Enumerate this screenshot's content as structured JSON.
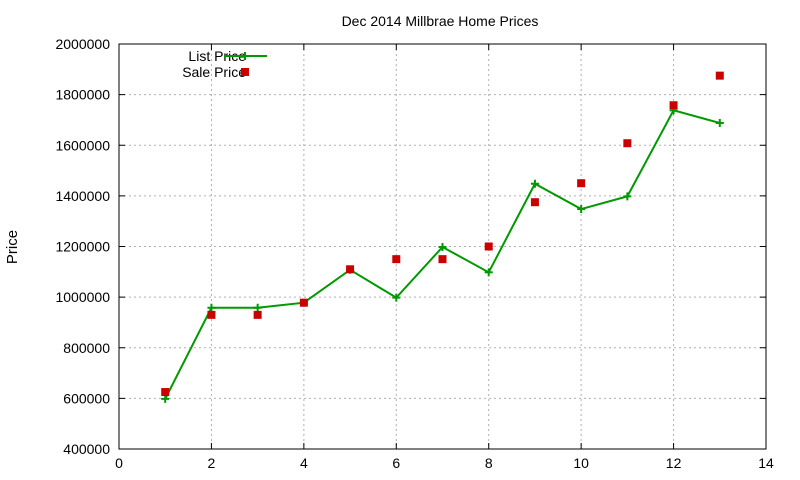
{
  "chart_data": {
    "type": "line",
    "title": "Dec 2014 Millbrae Home Prices",
    "xlabel": "",
    "ylabel": "Price",
    "xlim": [
      0,
      14
    ],
    "ylim": [
      400000,
      2000000
    ],
    "x_ticks": [
      "0",
      "2",
      "4",
      "6",
      "8",
      "10",
      "12",
      "14"
    ],
    "y_ticks": [
      "400000",
      "600000",
      "800000",
      "1000000",
      "1200000",
      "1400000",
      "1600000",
      "1800000",
      "2000000"
    ],
    "grid": true,
    "legend_position": "top-left",
    "series": [
      {
        "name": "List Price",
        "style": "line+cross",
        "color": "#009900",
        "points": [
          [
            1,
            598000
          ],
          [
            2,
            958000
          ],
          [
            3,
            958000
          ],
          [
            4,
            978000
          ],
          [
            5,
            1108000
          ],
          [
            6,
            998000
          ],
          [
            7,
            1198000
          ],
          [
            8,
            1098000
          ],
          [
            9,
            1448000
          ],
          [
            10,
            1348000
          ],
          [
            11,
            1398000
          ],
          [
            12,
            1738000
          ],
          [
            13,
            1688000
          ]
        ]
      },
      {
        "name": "Sale Price",
        "style": "square",
        "color": "#cc0000",
        "points": [
          [
            1,
            625000
          ],
          [
            2,
            930000
          ],
          [
            3,
            930000
          ],
          [
            4,
            978000
          ],
          [
            5,
            1110000
          ],
          [
            6,
            1150000
          ],
          [
            7,
            1150000
          ],
          [
            8,
            1200000
          ],
          [
            9,
            1375000
          ],
          [
            10,
            1450000
          ],
          [
            11,
            1608000
          ],
          [
            12,
            1758000
          ],
          [
            13,
            1875000
          ]
        ]
      }
    ]
  }
}
